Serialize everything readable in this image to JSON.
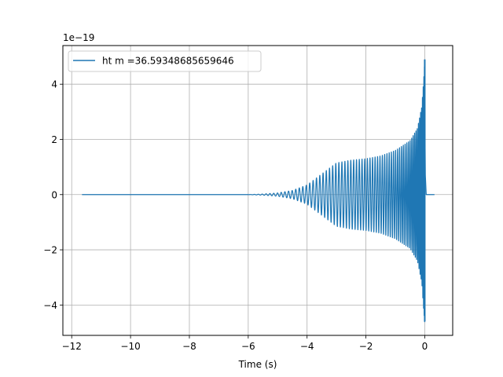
{
  "chart_data": {
    "type": "line",
    "title": "",
    "xlabel": "Time (s)",
    "ylabel": "",
    "y_offset_label": "1e−19",
    "xlim": [
      -12.3,
      0.95
    ],
    "ylim": [
      -5.1,
      5.4
    ],
    "x_ticks": [
      -12,
      -10,
      -8,
      -6,
      -4,
      -2,
      0
    ],
    "x_tick_labels": [
      "−12",
      "−10",
      "−8",
      "−6",
      "−4",
      "−2",
      "0"
    ],
    "y_ticks": [
      -4,
      -2,
      0,
      2,
      4
    ],
    "y_tick_labels": [
      "−4",
      "−2",
      "0",
      "2",
      "4"
    ],
    "grid": true,
    "legend_position": "upper-left",
    "series": [
      {
        "name": "ht m =36.59348685659646",
        "color": "#1f77b4",
        "x_range": [
          -11.65,
          0.33
        ],
        "merger_time": 0.0,
        "envelope": [
          {
            "t": -11.65,
            "a": 0.0
          },
          {
            "t": -6.0,
            "a": 0.0
          },
          {
            "t": -5.5,
            "a": 0.02
          },
          {
            "t": -5.0,
            "a": 0.06
          },
          {
            "t": -4.5,
            "a": 0.15
          },
          {
            "t": -4.0,
            "a": 0.35
          },
          {
            "t": -3.5,
            "a": 0.75
          },
          {
            "t": -3.0,
            "a": 1.15
          },
          {
            "t": -2.5,
            "a": 1.25
          },
          {
            "t": -2.0,
            "a": 1.3
          },
          {
            "t": -1.5,
            "a": 1.4
          },
          {
            "t": -1.0,
            "a": 1.6
          },
          {
            "t": -0.5,
            "a": 1.95
          },
          {
            "t": -0.25,
            "a": 2.4
          },
          {
            "t": -0.1,
            "a": 3.2
          },
          {
            "t": -0.03,
            "a": 4.3
          },
          {
            "t": 0.0,
            "a": 4.85
          },
          {
            "t": 0.02,
            "a": 1.0
          },
          {
            "t": 0.05,
            "a": 0.0
          },
          {
            "t": 0.33,
            "a": 0.0
          }
        ],
        "peak_max": 4.9,
        "peak_min": -4.6
      }
    ]
  }
}
